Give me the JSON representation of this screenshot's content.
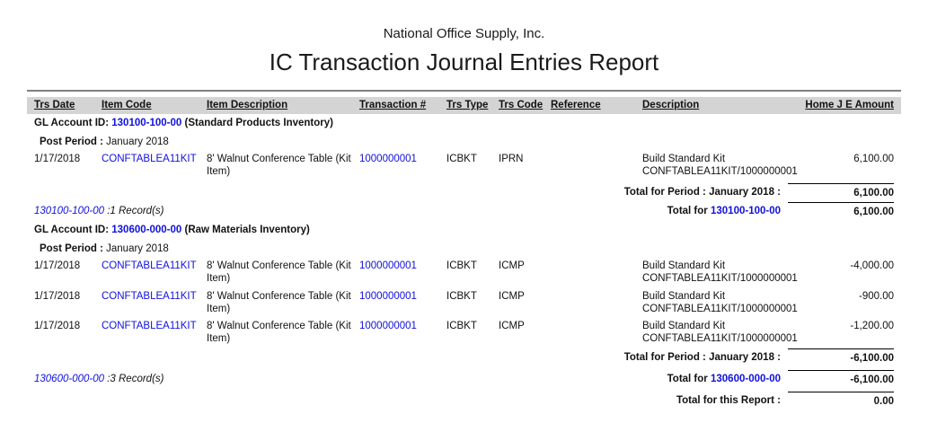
{
  "report": {
    "company_name": "National Office Supply, Inc.",
    "title": "IC Transaction Journal Entries Report",
    "colors": {
      "link_blue": "#1010e0",
      "band_gray": "#d4d4d4",
      "rule_gray": "#808080"
    },
    "columns": {
      "trs_date": "Trs Date",
      "item_code": "Item Code",
      "item_description": "Item Description",
      "transaction_num": "Transaction #",
      "trs_type": "Trs Type",
      "trs_code": "Trs Code",
      "reference": "Reference",
      "description": "Description",
      "home_je_amount": "Home J E Amount"
    },
    "sections": [
      {
        "gl_account_label": "GL Account ID:",
        "gl_account_id": "130100-100-00",
        "gl_account_name": "(Standard Products Inventory)",
        "post_period_label": "Post Period :",
        "post_period_value": "January 2018",
        "rows": [
          {
            "trs_date": "1/17/2018",
            "item_code": "CONFTABLEA11KIT",
            "item_description": "8' Walnut Conference Table (Kit Item)",
            "transaction_num": "1000000001",
            "trs_type": "ICBKT",
            "trs_code": "IPRN",
            "reference": "",
            "description": "Build Standard Kit CONFTABLEA11KIT/1000000001",
            "amount": "6,100.00"
          }
        ],
        "period_total_label": "Total for Period : January 2018 :",
        "period_total_amount": "6,100.00",
        "records_account_id": "130100-100-00",
        "records_count_text": ":1 Record(s)",
        "account_total_label": "Total for",
        "account_total_id": "130100-100-00",
        "account_total_amount": "6,100.00"
      },
      {
        "gl_account_label": "GL Account ID:",
        "gl_account_id": "130600-000-00",
        "gl_account_name": "(Raw Materials Inventory)",
        "post_period_label": "Post Period :",
        "post_period_value": "January 2018",
        "rows": [
          {
            "trs_date": "1/17/2018",
            "item_code": "CONFTABLEA11KIT",
            "item_description": "8' Walnut Conference Table (Kit Item)",
            "transaction_num": "1000000001",
            "trs_type": "ICBKT",
            "trs_code": "ICMP",
            "reference": "",
            "description": "Build Standard Kit CONFTABLEA11KIT/1000000001",
            "amount": "-4,000.00"
          },
          {
            "trs_date": "1/17/2018",
            "item_code": "CONFTABLEA11KIT",
            "item_description": "8' Walnut Conference Table (Kit Item)",
            "transaction_num": "1000000001",
            "trs_type": "ICBKT",
            "trs_code": "ICMP",
            "reference": "",
            "description": "Build Standard Kit CONFTABLEA11KIT/1000000001",
            "amount": "-900.00"
          },
          {
            "trs_date": "1/17/2018",
            "item_code": "CONFTABLEA11KIT",
            "item_description": "8' Walnut Conference Table (Kit Item)",
            "transaction_num": "1000000001",
            "trs_type": "ICBKT",
            "trs_code": "ICMP",
            "reference": "",
            "description": "Build Standard Kit CONFTABLEA11KIT/1000000001",
            "amount": "-1,200.00"
          }
        ],
        "period_total_label": "Total for Period : January 2018 :",
        "period_total_amount": "-6,100.00",
        "records_account_id": "130600-000-00",
        "records_count_text": ":3 Record(s)",
        "account_total_label": "Total for",
        "account_total_id": "130600-000-00",
        "account_total_amount": "-6,100.00"
      }
    ],
    "report_total_label": "Total for this Report :",
    "report_total_amount": "0.00"
  }
}
